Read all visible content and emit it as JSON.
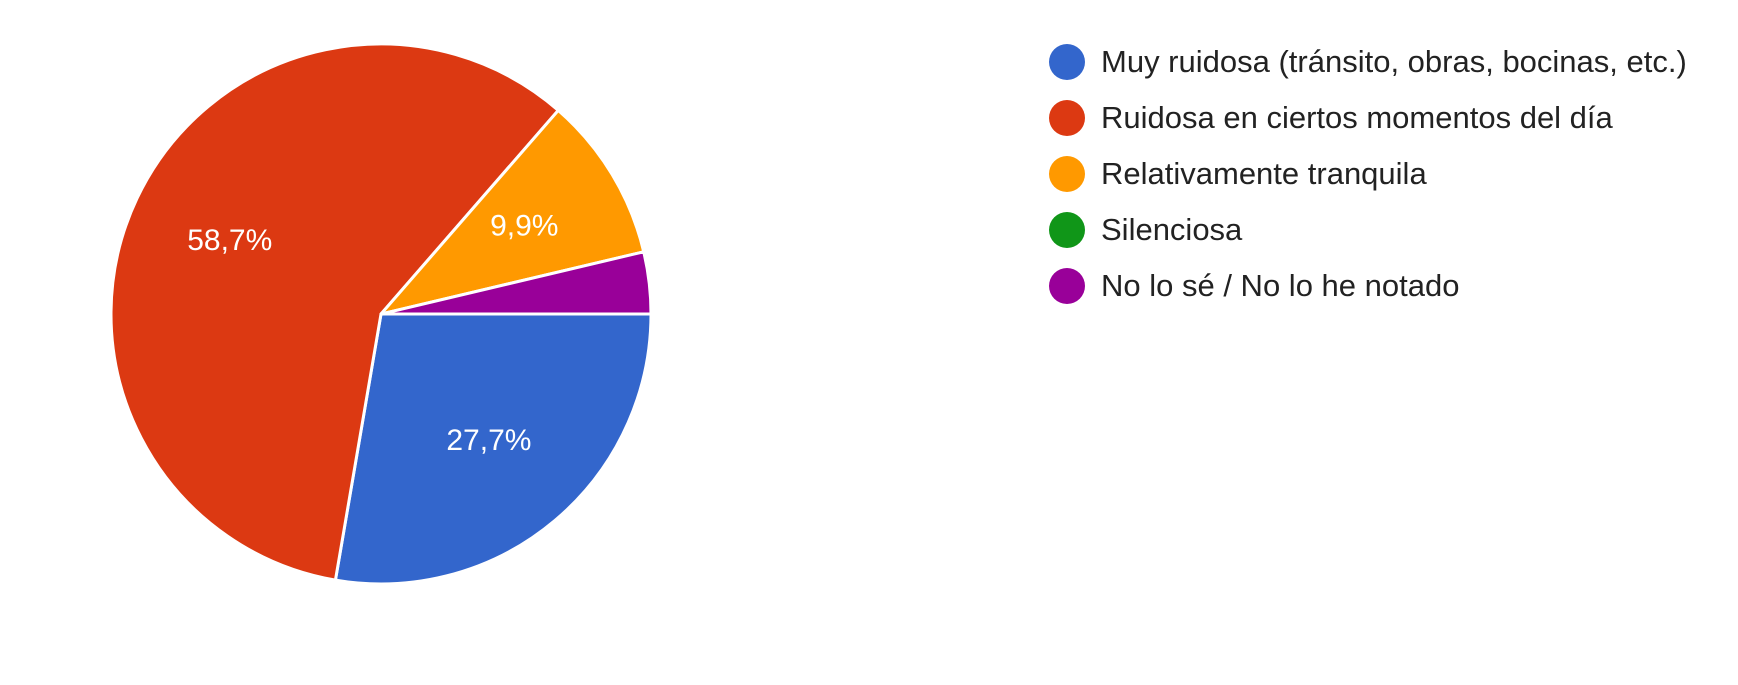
{
  "chart_data": {
    "type": "pie",
    "slices": [
      {
        "label": "Muy ruidosa (tránsito, obras, bocinas, etc.)",
        "value": 27.7,
        "display": "27,7%",
        "color": "#3366cc"
      },
      {
        "label": "Ruidosa en ciertos momentos del día",
        "value": 58.7,
        "display": "58,7%",
        "color": "#dc3912"
      },
      {
        "label": "Relativamente tranquila",
        "value": 9.9,
        "display": "9,9%",
        "color": "#ff9900"
      },
      {
        "label": "Silenciosa",
        "value": 0,
        "display": "",
        "color": "#109618"
      },
      {
        "label": "No lo sé / No lo he notado",
        "value": 3.7,
        "display": "",
        "color": "#990099"
      }
    ],
    "legend_position": "right"
  }
}
